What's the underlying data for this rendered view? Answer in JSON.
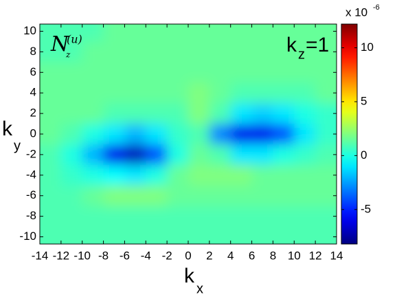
{
  "chart_data": {
    "type": "heatmap",
    "xlabel": "k",
    "xlabel_sub": "x",
    "ylabel": "k",
    "ylabel_sub": "y",
    "annotations": [
      {
        "text": "k",
        "sub": "z",
        "after": "=1"
      },
      {
        "text": "N",
        "sub": "z",
        "sup": "(u)"
      }
    ],
    "x": [
      -13,
      -11,
      -9,
      -7,
      -5,
      -3,
      -1,
      1,
      3,
      5,
      7,
      9,
      11,
      13
    ],
    "y": [
      10,
      8,
      6,
      4,
      2,
      0,
      -2,
      -4,
      -6,
      -8,
      -10
    ],
    "values": [
      [
        1,
        1,
        1,
        1.5,
        1.5,
        1.5,
        1.5,
        1.5,
        1.5,
        1.5,
        1.5,
        1.5,
        1.5,
        1.5
      ],
      [
        1,
        1,
        1.5,
        1.5,
        1.5,
        1.5,
        1.5,
        1.5,
        1.5,
        1.5,
        1.5,
        1.5,
        1.5,
        1.5
      ],
      [
        1.5,
        1.5,
        1.5,
        1.5,
        1.5,
        1.5,
        1.5,
        1.5,
        1.5,
        1.5,
        1.5,
        1.5,
        1.5,
        1.5
      ],
      [
        1.5,
        1.5,
        1.5,
        1.5,
        1.5,
        1.5,
        1.5,
        2,
        1.5,
        1,
        1,
        1,
        1,
        1.5
      ],
      [
        1.5,
        1.5,
        1.5,
        1,
        1,
        1,
        1,
        2,
        1,
        -1,
        -1.5,
        -1,
        0,
        0.5
      ],
      [
        1.5,
        1,
        0,
        -1,
        -2,
        -1,
        0.5,
        1,
        -3,
        -6,
        -6,
        -4,
        -1,
        0.5
      ],
      [
        1,
        0,
        -2,
        -6,
        -7,
        -4,
        0,
        1.5,
        1,
        -1,
        -1,
        0,
        0.5,
        1
      ],
      [
        1,
        0.5,
        0,
        -0.5,
        -1,
        0,
        1.5,
        2,
        2,
        2,
        1.5,
        1.5,
        1.5,
        1.5
      ],
      [
        1,
        1,
        1.5,
        2,
        2,
        2,
        1.5,
        1.5,
        1.5,
        1.5,
        1.5,
        1.5,
        1.5,
        1.5
      ],
      [
        1,
        1,
        1,
        1,
        1,
        1,
        1,
        1,
        1,
        1,
        1,
        1,
        1,
        1
      ],
      [
        1,
        1,
        1,
        1,
        1,
        1,
        1,
        1,
        1,
        1,
        1,
        1,
        1,
        1
      ]
    ],
    "xlim": [
      -14,
      14
    ],
    "ylim": [
      -10.7,
      10.7
    ],
    "xticks": [
      -14,
      -12,
      -10,
      -8,
      -6,
      -4,
      -2,
      0,
      2,
      4,
      6,
      8,
      10,
      12,
      14
    ],
    "yticks": [
      -10,
      -8,
      -6,
      -4,
      -2,
      0,
      2,
      4,
      6,
      8,
      10
    ],
    "colormap": "jet",
    "clim": [
      -8.2,
      12.2
    ],
    "cticks": [
      -5,
      0,
      5,
      10
    ],
    "colorbar_label": "x 10",
    "colorbar_exponent": "-6"
  }
}
